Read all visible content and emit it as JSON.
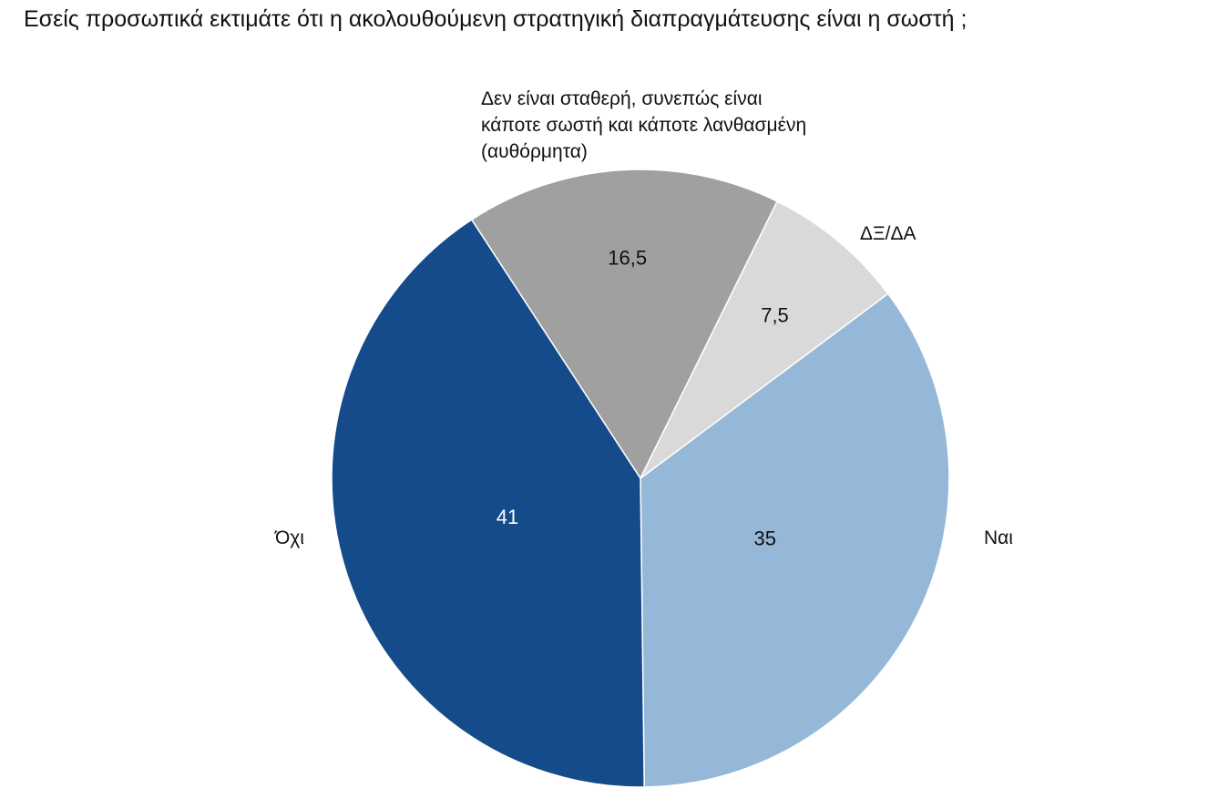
{
  "chart_data": {
    "type": "pie",
    "title": "Εσείς προσωπικά εκτιμάτε ότι η ακολουθούμενη στρατηγική διαπραγμάτευσης είναι η σωστή ;",
    "slices": [
      {
        "label": "Ναι",
        "value": 35,
        "value_label": "35",
        "color": "#95b8d9",
        "text_color": "#111111"
      },
      {
        "label": "Όχι",
        "value": 41,
        "value_label": "41",
        "color": "#154b8a",
        "text_color": "#ffffff"
      },
      {
        "label": "Δεν είναι σταθερή, συνεπώς είναι κάποτε σωστή και κάποτε λανθασμένη (αυθόρμητα)",
        "value": 16.5,
        "value_label": "16,5",
        "color": "#a0a0a0",
        "text_color": "#111111"
      },
      {
        "label": "ΔΞ/ΔΑ",
        "value": 7.5,
        "value_label": "7,5",
        "color": "#d9d9d9",
        "text_color": "#111111"
      }
    ],
    "legend": "none",
    "labels": "outside-category, inside-value"
  }
}
